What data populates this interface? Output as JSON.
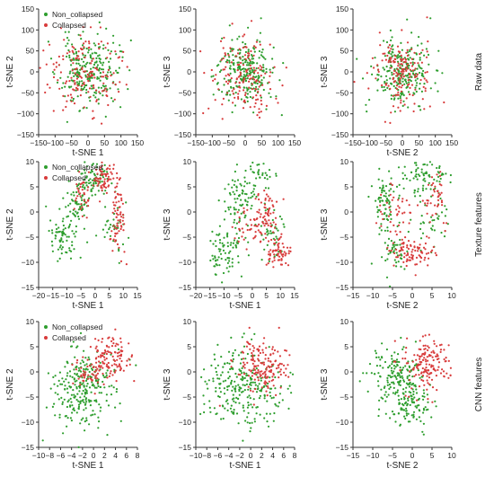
{
  "colors": {
    "non_collapsed": "#2e9e2e",
    "collapsed": "#d83b3b"
  },
  "row_labels": [
    "Raw data",
    "Texture features",
    "CNN features"
  ],
  "chart_data": [
    {
      "type": "scatter",
      "row": 0,
      "col": 0,
      "xlabel": "t-SNE 1",
      "ylabel": "t-SNE 2",
      "xlim": [
        -150,
        150
      ],
      "ylim": [
        -150,
        150
      ],
      "xticks": [
        -150,
        -100,
        -50,
        0,
        50,
        100,
        150
      ],
      "yticks": [
        -150,
        -100,
        -50,
        0,
        50,
        100,
        150
      ],
      "legend": {
        "placement": "top-left",
        "entries": [
          "Non_collapsed",
          "Collapsed"
        ]
      },
      "series": [
        {
          "name": "Non_collapsed",
          "n": 240,
          "seed": 11,
          "clusters": [
            {
              "cx": 0,
              "cy": 0,
              "sx": 45,
              "sy": 42,
              "w": 1
            }
          ],
          "outliers": [
            [
              35,
              118
            ]
          ]
        },
        {
          "name": "Collapsed",
          "n": 160,
          "seed": 12,
          "clusters": [
            {
              "cx": -10,
              "cy": 0,
              "sx": 55,
              "sy": 45,
              "w": 1
            }
          ],
          "outliers": []
        }
      ]
    },
    {
      "type": "scatter",
      "row": 0,
      "col": 1,
      "xlabel": "",
      "ylabel": "t-SNE 3",
      "xlim": [
        -150,
        150
      ],
      "ylim": [
        -150,
        150
      ],
      "xticks": [
        -150,
        -100,
        -50,
        0,
        50,
        100,
        150
      ],
      "yticks": [
        -150,
        -100,
        -50,
        0,
        50,
        100,
        150
      ],
      "series": [
        {
          "name": "Non_collapsed",
          "n": 240,
          "seed": 21,
          "clusters": [
            {
              "cx": 0,
              "cy": 0,
              "sx": 45,
              "sy": 42,
              "w": 1
            }
          ],
          "outliers": [
            [
              48,
              128
            ]
          ]
        },
        {
          "name": "Collapsed",
          "n": 160,
          "seed": 22,
          "clusters": [
            {
              "cx": -10,
              "cy": -5,
              "sx": 55,
              "sy": 45,
              "w": 1
            }
          ],
          "outliers": []
        }
      ]
    },
    {
      "type": "scatter",
      "row": 0,
      "col": 2,
      "xlabel": "t-SNE 2",
      "ylabel": "t-SNE 3",
      "xlim": [
        -150,
        150
      ],
      "ylim": [
        -150,
        150
      ],
      "xticks": [
        -150,
        -100,
        -50,
        0,
        50,
        100,
        150
      ],
      "yticks": [
        -150,
        -100,
        -50,
        0,
        50,
        100,
        150
      ],
      "series": [
        {
          "name": "Non_collapsed",
          "n": 240,
          "seed": 31,
          "clusters": [
            {
              "cx": 0,
              "cy": 0,
              "sx": 42,
              "sy": 40,
              "w": 1
            }
          ],
          "outliers": [
            [
              85,
              128
            ],
            [
              110,
              50
            ]
          ]
        },
        {
          "name": "Collapsed",
          "n": 160,
          "seed": 32,
          "clusters": [
            {
              "cx": -5,
              "cy": 0,
              "sx": 45,
              "sy": 42,
              "w": 1
            }
          ],
          "outliers": [
            [
              75,
              130
            ]
          ]
        }
      ]
    },
    {
      "type": "scatter",
      "row": 1,
      "col": 0,
      "xlabel": "t-SNE 1",
      "ylabel": "t-SNE 2",
      "xlim": [
        -20,
        15
      ],
      "ylim": [
        -15,
        10
      ],
      "xticks": [
        -20,
        -15,
        -10,
        -5,
        0,
        5,
        10,
        15
      ],
      "yticks": [
        -15,
        -10,
        -5,
        0,
        5,
        10
      ],
      "legend": {
        "placement": "top-left",
        "entries": [
          "Non_collapsed",
          "Collapsed"
        ]
      },
      "series": [
        {
          "name": "Non_collapsed",
          "n": 240,
          "seed": 41,
          "clusters": [
            {
              "cx": -11,
              "cy": -5,
              "sx": 2.5,
              "sy": 2.2,
              "w": 2
            },
            {
              "cx": -6,
              "cy": 2,
              "sx": 2,
              "sy": 3,
              "w": 2
            },
            {
              "cx": 0,
              "cy": 7,
              "sx": 2.5,
              "sy": 2,
              "w": 2
            },
            {
              "cx": 6,
              "cy": -3,
              "sx": 2,
              "sy": 3,
              "w": 1
            }
          ],
          "outliers": []
        },
        {
          "name": "Collapsed",
          "n": 170,
          "seed": 42,
          "clusters": [
            {
              "cx": 3,
              "cy": 7,
              "sx": 2,
              "sy": 1.5,
              "w": 2
            },
            {
              "cx": 8,
              "cy": -1,
              "sx": 1.2,
              "sy": 4,
              "w": 2
            },
            {
              "cx": -4,
              "cy": 4,
              "sx": 2.5,
              "sy": 2,
              "w": 1
            }
          ],
          "outliers": []
        }
      ]
    },
    {
      "type": "scatter",
      "row": 1,
      "col": 1,
      "xlabel": "t-SNE 1",
      "ylabel": "t-SNE 3",
      "xlim": [
        -20,
        15
      ],
      "ylim": [
        -15,
        10
      ],
      "xticks": [
        -20,
        -15,
        -10,
        -5,
        0,
        5,
        10,
        15
      ],
      "yticks": [
        -15,
        -10,
        -5,
        0,
        5,
        10
      ],
      "series": [
        {
          "name": "Non_collapsed",
          "n": 240,
          "seed": 51,
          "clusters": [
            {
              "cx": -10,
              "cy": -8,
              "sx": 3,
              "sy": 2.5,
              "w": 2
            },
            {
              "cx": -5,
              "cy": 2,
              "sx": 2.5,
              "sy": 3,
              "w": 2
            },
            {
              "cx": 2,
              "cy": 7,
              "sx": 2.5,
              "sy": 2,
              "w": 1
            },
            {
              "cx": 7,
              "cy": -5,
              "sx": 2.5,
              "sy": 2.5,
              "w": 1
            }
          ],
          "outliers": []
        },
        {
          "name": "Collapsed",
          "n": 170,
          "seed": 52,
          "clusters": [
            {
              "cx": 10,
              "cy": -8,
              "sx": 2,
              "sy": 1.5,
              "w": 2
            },
            {
              "cx": 5,
              "cy": 0,
              "sx": 2,
              "sy": 3,
              "w": 2
            },
            {
              "cx": -2,
              "cy": -3,
              "sx": 3,
              "sy": 2,
              "w": 1
            }
          ],
          "outliers": []
        }
      ]
    },
    {
      "type": "scatter",
      "row": 1,
      "col": 2,
      "xlabel": "t-SNE 2",
      "ylabel": "t-SNE 3",
      "xlim": [
        -15,
        10
      ],
      "ylim": [
        -15,
        10
      ],
      "xticks": [
        -15,
        -10,
        -5,
        0,
        5,
        10
      ],
      "yticks": [
        -15,
        -10,
        -5,
        0,
        5,
        10
      ],
      "series": [
        {
          "name": "Non_collapsed",
          "n": 240,
          "seed": 61,
          "clusters": [
            {
              "cx": -5,
              "cy": -8,
              "sx": 2,
              "sy": 2,
              "w": 1
            },
            {
              "cx": -7,
              "cy": 2,
              "sx": 2,
              "sy": 3,
              "w": 2
            },
            {
              "cx": 3,
              "cy": 7,
              "sx": 3,
              "sy": 2,
              "w": 2
            },
            {
              "cx": 5,
              "cy": -2,
              "sx": 2.5,
              "sy": 3,
              "w": 1
            }
          ],
          "outliers": []
        },
        {
          "name": "Collapsed",
          "n": 170,
          "seed": 62,
          "clusters": [
            {
              "cx": 0,
              "cy": -8,
              "sx": 3,
              "sy": 1.5,
              "w": 2
            },
            {
              "cx": 6,
              "cy": 2,
              "sx": 2,
              "sy": 3,
              "w": 1
            },
            {
              "cx": -4,
              "cy": 0,
              "sx": 2,
              "sy": 3,
              "w": 1
            }
          ],
          "outliers": []
        }
      ]
    },
    {
      "type": "scatter",
      "row": 2,
      "col": 0,
      "xlabel": "t-SNE 1",
      "ylabel": "t-SNE 2",
      "xlim": [
        -10,
        8
      ],
      "ylim": [
        -15,
        10
      ],
      "xticks": [
        -10,
        -8,
        -6,
        -4,
        -2,
        0,
        2,
        4,
        6,
        8
      ],
      "yticks": [
        -15,
        -10,
        -5,
        0,
        5,
        10
      ],
      "legend": {
        "placement": "top-left",
        "entries": [
          "Non_collapsed",
          "Collapsed"
        ]
      },
      "series": [
        {
          "name": "Non_collapsed",
          "n": 260,
          "seed": 71,
          "clusters": [
            {
              "cx": -3,
              "cy": -4,
              "sx": 2.5,
              "sy": 4,
              "w": 2
            },
            {
              "cx": 0,
              "cy": -1,
              "sx": 2.5,
              "sy": 3,
              "w": 1
            }
          ],
          "outliers": []
        },
        {
          "name": "Collapsed",
          "n": 160,
          "seed": 72,
          "clusters": [
            {
              "cx": 3,
              "cy": 3,
              "sx": 2,
              "sy": 2.5,
              "w": 2
            },
            {
              "cx": 0,
              "cy": 0,
              "sx": 2,
              "sy": 2,
              "w": 1
            }
          ],
          "outliers": []
        }
      ]
    },
    {
      "type": "scatter",
      "row": 2,
      "col": 1,
      "xlabel": "t-SNE 1",
      "ylabel": "t-SNE 3",
      "xlim": [
        -10,
        8
      ],
      "ylim": [
        -15,
        10
      ],
      "xticks": [
        -10,
        -8,
        -6,
        -4,
        -2,
        0,
        2,
        4,
        6,
        8
      ],
      "yticks": [
        -15,
        -10,
        -5,
        0,
        5,
        10
      ],
      "series": [
        {
          "name": "Non_collapsed",
          "n": 260,
          "seed": 81,
          "clusters": [
            {
              "cx": -3,
              "cy": -2,
              "sx": 2.8,
              "sy": 4,
              "w": 2
            },
            {
              "cx": 2,
              "cy": -4,
              "sx": 2.5,
              "sy": 3,
              "w": 1
            }
          ],
          "outliers": []
        },
        {
          "name": "Collapsed",
          "n": 160,
          "seed": 82,
          "clusters": [
            {
              "cx": 2,
              "cy": 1,
              "sx": 2.5,
              "sy": 3,
              "w": 2
            }
          ],
          "outliers": []
        }
      ]
    },
    {
      "type": "scatter",
      "row": 2,
      "col": 2,
      "xlabel": "t-SNE 2",
      "ylabel": "t-SNE 3",
      "xlim": [
        -15,
        10
      ],
      "ylim": [
        -15,
        10
      ],
      "xticks": [
        -15,
        -10,
        -5,
        0,
        5,
        10
      ],
      "yticks": [
        -15,
        -10,
        -5,
        0,
        5,
        10
      ],
      "series": [
        {
          "name": "Non_collapsed",
          "n": 260,
          "seed": 91,
          "clusters": [
            {
              "cx": -4,
              "cy": -1,
              "sx": 3.5,
              "sy": 3,
              "w": 2
            },
            {
              "cx": 0,
              "cy": -7,
              "sx": 3,
              "sy": 2.5,
              "w": 1
            }
          ],
          "outliers": []
        },
        {
          "name": "Collapsed",
          "n": 160,
          "seed": 92,
          "clusters": [
            {
              "cx": 4,
              "cy": 2,
              "sx": 3,
              "sy": 3,
              "w": 1
            }
          ],
          "outliers": []
        }
      ]
    }
  ]
}
